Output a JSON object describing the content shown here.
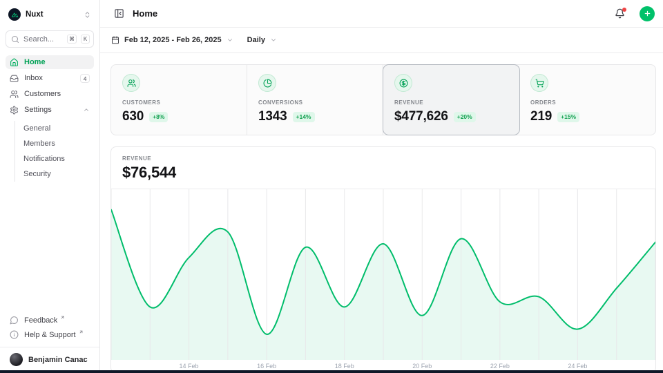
{
  "colors": {
    "accent": "#00c16a",
    "accent_text": "#00a155",
    "line": "#00bd6b",
    "badge_bg": "#dff7ea",
    "badge_text": "#12a150",
    "notification_dot": "#ef4444",
    "logo_bg": "#0c1524",
    "logo_green": "#00dc82",
    "bottom_bar": "#101828"
  },
  "sidebar": {
    "workspace": {
      "name": "Nuxt"
    },
    "search": {
      "placeholder": "Search...",
      "keys": [
        "⌘",
        "K"
      ]
    },
    "nav": [
      {
        "label": "Home",
        "icon": "home-icon",
        "active": true
      },
      {
        "label": "Inbox",
        "icon": "inbox-icon",
        "badge": "4"
      },
      {
        "label": "Customers",
        "icon": "users-icon"
      },
      {
        "label": "Settings",
        "icon": "gear-icon",
        "expanded": true,
        "children": [
          "General",
          "Members",
          "Notifications",
          "Security"
        ]
      }
    ],
    "footer": [
      {
        "label": "Feedback",
        "icon": "message-circle-icon",
        "external": true
      },
      {
        "label": "Help & Support",
        "icon": "info-circle-icon",
        "external": true
      }
    ],
    "user": {
      "name": "Benjamin Canac"
    }
  },
  "header": {
    "title": "Home"
  },
  "filters": {
    "date_range": "Feb 12, 2025 - Feb 26, 2025",
    "interval": "Daily"
  },
  "stats": [
    {
      "label": "CUSTOMERS",
      "value": "630",
      "change": "+8%",
      "icon": "users-icon",
      "selected": false
    },
    {
      "label": "CONVERSIONS",
      "value": "1343",
      "change": "+14%",
      "icon": "chart-pie-icon",
      "selected": false
    },
    {
      "label": "REVENUE",
      "value": "$477,626",
      "change": "+20%",
      "icon": "circle-dollar-icon",
      "selected": true
    },
    {
      "label": "ORDERS",
      "value": "219",
      "change": "+15%",
      "icon": "cart-icon",
      "selected": false
    }
  ],
  "chart": {
    "label": "REVENUE",
    "value": "$76,544"
  },
  "chart_data": {
    "type": "area",
    "title": "REVENUE",
    "current_value": "$76,544",
    "x": [
      "Feb 12",
      "Feb 13",
      "Feb 14",
      "Feb 15",
      "Feb 16",
      "Feb 17",
      "Feb 18",
      "Feb 19",
      "Feb 20",
      "Feb 21",
      "Feb 22",
      "Feb 23",
      "Feb 24",
      "Feb 25",
      "Feb 26"
    ],
    "values": [
      88000,
      31000,
      60000,
      75000,
      15000,
      66000,
      31000,
      68000,
      26000,
      71000,
      34000,
      37000,
      18000,
      42000,
      69000
    ],
    "ylim": [
      0,
      100000
    ],
    "xticks": [
      {
        "index": 2,
        "label": "14 Feb"
      },
      {
        "index": 4,
        "label": "16 Feb"
      },
      {
        "index": 6,
        "label": "18 Feb"
      },
      {
        "index": 8,
        "label": "20 Feb"
      },
      {
        "index": 10,
        "label": "22 Feb"
      },
      {
        "index": 12,
        "label": "24 Feb"
      }
    ],
    "grid": "vertical-only",
    "legend": false,
    "xlabel": "",
    "ylabel": "",
    "line_color": "#00bd6b",
    "fill_color": "rgba(0,189,107,0.09)",
    "grid_color": "#e8e8ea"
  }
}
